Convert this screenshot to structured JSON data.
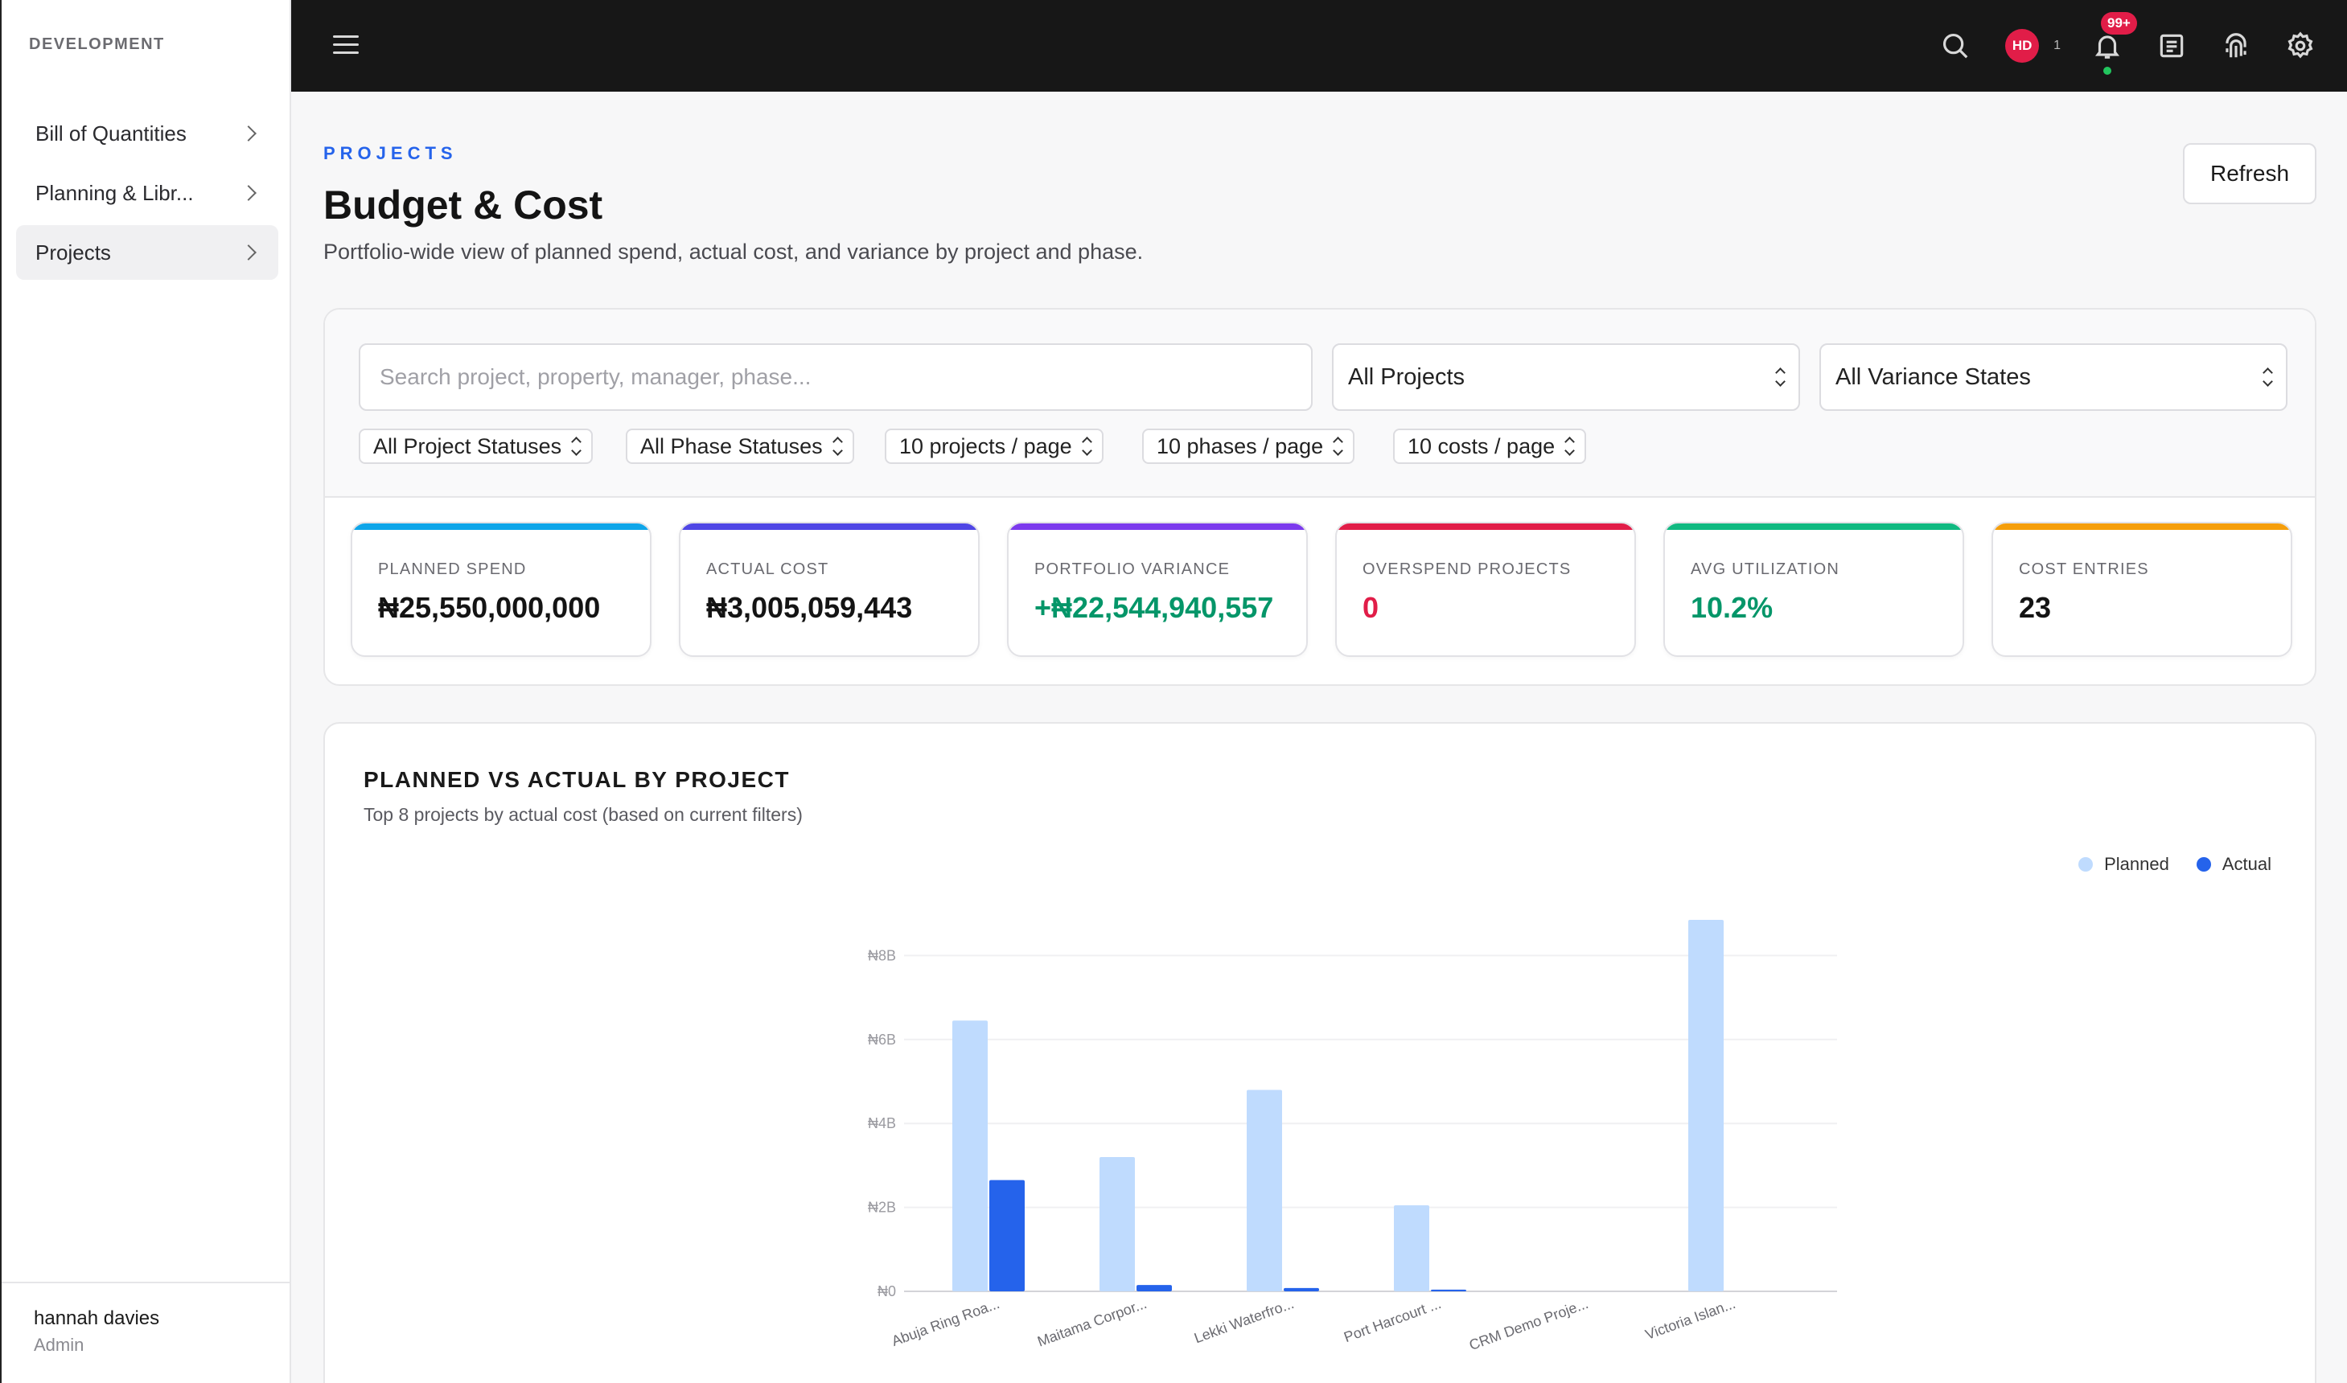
{
  "sidebar": {
    "section": "DEVELOPMENT",
    "items": [
      {
        "label": "Bill of Quantities"
      },
      {
        "label": "Planning & Libr..."
      },
      {
        "label": "Projects"
      }
    ],
    "user": {
      "name": "hannah davies",
      "role": "Admin"
    }
  },
  "topbar": {
    "avatar_initials": "HD",
    "avatar_count": "1",
    "notification_badge": "99+"
  },
  "header": {
    "eyebrow": "PROJECTS",
    "title": "Budget & Cost",
    "subtitle": "Portfolio-wide view of planned spend, actual cost, and variance by project and phase.",
    "refresh_label": "Refresh"
  },
  "filters": {
    "search_placeholder": "Search project, property, manager, phase...",
    "project_select": "All Projects",
    "variance_select": "All Variance States",
    "project_status": "All Project Statuses",
    "phase_status": "All Phase Statuses",
    "projects_per_page": "10 projects / page",
    "phases_per_page": "10 phases / page",
    "costs_per_page": "10 costs / page"
  },
  "stats": [
    {
      "label": "PLANNED SPEND",
      "value": "₦25,550,000,000",
      "accent": "#0ea5e9",
      "value_color": "#141414"
    },
    {
      "label": "ACTUAL COST",
      "value": "₦3,005,059,443",
      "accent": "#4f46e5",
      "value_color": "#141414"
    },
    {
      "label": "PORTFOLIO VARIANCE",
      "value": "+₦22,544,940,557",
      "accent": "#7c3aed",
      "value_color": "#059669"
    },
    {
      "label": "OVERSPEND PROJECTS",
      "value": "0",
      "accent": "#e11d48",
      "value_color": "#e11d48"
    },
    {
      "label": "AVG UTILIZATION",
      "value": "10.2%",
      "accent": "#10b981",
      "value_color": "#059669"
    },
    {
      "label": "COST ENTRIES",
      "value": "23",
      "accent": "#f59e0b",
      "value_color": "#141414"
    }
  ],
  "chart": {
    "title": "PLANNED VS ACTUAL BY PROJECT",
    "subtitle": "Top 8 projects by actual cost (based on current filters)",
    "legend_planned": "Planned",
    "legend_actual": "Actual"
  },
  "chart_data": {
    "type": "bar",
    "categories": [
      "Abuja Ring Roa...",
      "Maitama Corpor...",
      "Lekki Waterfro...",
      "Port Harcourt ...",
      "CRM Demo Proje...",
      "Victoria Islan..."
    ],
    "series": [
      {
        "name": "Planned",
        "color": "#bfdbfe",
        "values": [
          6.45,
          3.2,
          4.8,
          2.05,
          0,
          8.85
        ]
      },
      {
        "name": "Actual",
        "color": "#2563eb",
        "values": [
          2.65,
          0.15,
          0.08,
          0.04,
          0,
          0
        ]
      }
    ],
    "yticks": [
      "₦0",
      "₦2B",
      "₦4B",
      "₦6B",
      "₦8B"
    ],
    "ytick_values": [
      0,
      2,
      4,
      6,
      8
    ],
    "ylim": [
      0,
      9
    ],
    "unit": "billion NGN"
  }
}
